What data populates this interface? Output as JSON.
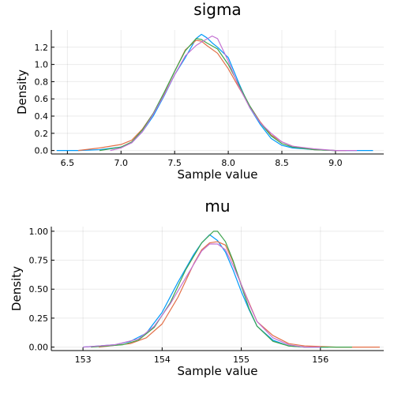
{
  "chart_data": [
    {
      "type": "line",
      "title": "sigma",
      "xlabel": "Sample value",
      "ylabel": "Density",
      "xlim": [
        6.35,
        9.45
      ],
      "ylim": [
        -0.04,
        1.4
      ],
      "xticks": [
        6.5,
        7.0,
        7.5,
        8.0,
        8.5,
        9.0
      ],
      "xtick_labels": [
        "6.5",
        "7.0",
        "7.5",
        "8.0",
        "8.5",
        "9.0"
      ],
      "yticks": [
        0.0,
        0.2,
        0.4,
        0.6,
        0.8,
        1.0,
        1.2
      ],
      "ytick_labels": [
        "0.0",
        "0.2",
        "0.4",
        "0.6",
        "0.8",
        "1.0",
        "1.2"
      ],
      "grid": true,
      "legend": "none",
      "series": [
        {
          "color": "#009AFA",
          "points": [
            [
              6.4,
              0.0
            ],
            [
              6.6,
              0.0
            ],
            [
              6.8,
              0.01
            ],
            [
              7.0,
              0.04
            ],
            [
              7.1,
              0.09
            ],
            [
              7.2,
              0.22
            ],
            [
              7.3,
              0.4
            ],
            [
              7.4,
              0.63
            ],
            [
              7.5,
              0.88
            ],
            [
              7.6,
              1.08
            ],
            [
              7.7,
              1.3
            ],
            [
              7.75,
              1.35
            ],
            [
              7.8,
              1.31
            ],
            [
              7.85,
              1.25
            ],
            [
              7.9,
              1.2
            ],
            [
              8.0,
              1.08
            ],
            [
              8.1,
              0.78
            ],
            [
              8.2,
              0.5
            ],
            [
              8.3,
              0.3
            ],
            [
              8.4,
              0.14
            ],
            [
              8.5,
              0.06
            ],
            [
              8.6,
              0.03
            ],
            [
              8.8,
              0.01
            ],
            [
              9.0,
              0.0
            ],
            [
              9.35,
              0.0
            ]
          ]
        },
        {
          "color": "#E36F47",
          "points": [
            [
              6.6,
              0.0
            ],
            [
              6.8,
              0.03
            ],
            [
              7.0,
              0.07
            ],
            [
              7.1,
              0.12
            ],
            [
              7.2,
              0.25
            ],
            [
              7.3,
              0.43
            ],
            [
              7.4,
              0.66
            ],
            [
              7.5,
              0.92
            ],
            [
              7.6,
              1.17
            ],
            [
              7.7,
              1.28
            ],
            [
              7.75,
              1.27
            ],
            [
              7.8,
              1.22
            ],
            [
              7.9,
              1.13
            ],
            [
              8.0,
              0.95
            ],
            [
              8.1,
              0.73
            ],
            [
              8.2,
              0.52
            ],
            [
              8.3,
              0.33
            ],
            [
              8.4,
              0.18
            ],
            [
              8.5,
              0.1
            ],
            [
              8.6,
              0.05
            ],
            [
              8.8,
              0.01
            ],
            [
              9.0,
              0.0
            ],
            [
              9.1,
              0.0
            ]
          ]
        },
        {
          "color": "#3EA44E",
          "points": [
            [
              6.8,
              0.0
            ],
            [
              7.0,
              0.04
            ],
            [
              7.1,
              0.1
            ],
            [
              7.2,
              0.24
            ],
            [
              7.3,
              0.43
            ],
            [
              7.4,
              0.67
            ],
            [
              7.5,
              0.92
            ],
            [
              7.6,
              1.16
            ],
            [
              7.7,
              1.3
            ],
            [
              7.75,
              1.29
            ],
            [
              7.8,
              1.25
            ],
            [
              7.9,
              1.18
            ],
            [
              8.0,
              1.0
            ],
            [
              8.1,
              0.76
            ],
            [
              8.2,
              0.52
            ],
            [
              8.3,
              0.32
            ],
            [
              8.4,
              0.17
            ],
            [
              8.5,
              0.08
            ],
            [
              8.6,
              0.04
            ],
            [
              8.8,
              0.01
            ],
            [
              9.0,
              0.0
            ]
          ]
        },
        {
          "color": "#C371D2",
          "points": [
            [
              6.9,
              0.0
            ],
            [
              7.0,
              0.03
            ],
            [
              7.1,
              0.09
            ],
            [
              7.2,
              0.22
            ],
            [
              7.3,
              0.42
            ],
            [
              7.4,
              0.64
            ],
            [
              7.5,
              0.88
            ],
            [
              7.6,
              1.1
            ],
            [
              7.7,
              1.22
            ],
            [
              7.75,
              1.26
            ],
            [
              7.85,
              1.33
            ],
            [
              7.9,
              1.3
            ],
            [
              8.0,
              1.04
            ],
            [
              8.1,
              0.74
            ],
            [
              8.2,
              0.5
            ],
            [
              8.3,
              0.32
            ],
            [
              8.4,
              0.2
            ],
            [
              8.5,
              0.1
            ],
            [
              8.6,
              0.05
            ],
            [
              8.8,
              0.02
            ],
            [
              9.0,
              0.0
            ],
            [
              9.2,
              0.0
            ]
          ]
        }
      ]
    },
    {
      "type": "line",
      "title": "mu",
      "xlabel": "Sample value",
      "ylabel": "Density",
      "xlim": [
        152.6,
        156.8
      ],
      "ylim": [
        -0.03,
        1.04
      ],
      "xticks": [
        153,
        154,
        155,
        156
      ],
      "xtick_labels": [
        "153",
        "154",
        "155",
        "156"
      ],
      "yticks": [
        0.0,
        0.25,
        0.5,
        0.75,
        1.0
      ],
      "ytick_labels": [
        "0.00",
        "0.25",
        "0.50",
        "0.75",
        "1.00"
      ],
      "grid": true,
      "legend": "none",
      "series": [
        {
          "color": "#009AFA",
          "points": [
            [
              153.0,
              0.0
            ],
            [
              153.4,
              0.02
            ],
            [
              153.6,
              0.05
            ],
            [
              153.8,
              0.12
            ],
            [
              154.0,
              0.3
            ],
            [
              154.2,
              0.56
            ],
            [
              154.4,
              0.8
            ],
            [
              154.5,
              0.9
            ],
            [
              154.6,
              0.97
            ],
            [
              154.7,
              0.92
            ],
            [
              154.8,
              0.82
            ],
            [
              154.9,
              0.66
            ],
            [
              155.0,
              0.48
            ],
            [
              155.1,
              0.32
            ],
            [
              155.2,
              0.18
            ],
            [
              155.4,
              0.06
            ],
            [
              155.6,
              0.01
            ],
            [
              155.8,
              0.0
            ],
            [
              156.1,
              0.0
            ]
          ]
        },
        {
          "color": "#E36F47",
          "points": [
            [
              153.2,
              0.0
            ],
            [
              153.6,
              0.03
            ],
            [
              153.8,
              0.08
            ],
            [
              154.0,
              0.2
            ],
            [
              154.2,
              0.43
            ],
            [
              154.4,
              0.72
            ],
            [
              154.5,
              0.84
            ],
            [
              154.6,
              0.9
            ],
            [
              154.7,
              0.91
            ],
            [
              154.8,
              0.88
            ],
            [
              154.9,
              0.73
            ],
            [
              155.0,
              0.54
            ],
            [
              155.1,
              0.38
            ],
            [
              155.2,
              0.22
            ],
            [
              155.4,
              0.1
            ],
            [
              155.6,
              0.03
            ],
            [
              155.8,
              0.01
            ],
            [
              156.2,
              0.0
            ],
            [
              156.75,
              0.0
            ]
          ]
        },
        {
          "color": "#3EA44E",
          "points": [
            [
              153.1,
              0.0
            ],
            [
              153.5,
              0.02
            ],
            [
              153.7,
              0.06
            ],
            [
              153.9,
              0.17
            ],
            [
              154.1,
              0.38
            ],
            [
              154.3,
              0.67
            ],
            [
              154.5,
              0.9
            ],
            [
              154.65,
              1.0
            ],
            [
              154.7,
              1.0
            ],
            [
              154.8,
              0.91
            ],
            [
              154.9,
              0.74
            ],
            [
              155.0,
              0.53
            ],
            [
              155.1,
              0.33
            ],
            [
              155.2,
              0.18
            ],
            [
              155.4,
              0.05
            ],
            [
              155.6,
              0.01
            ],
            [
              155.8,
              0.0
            ],
            [
              156.4,
              0.0
            ]
          ]
        },
        {
          "color": "#C371D2",
          "points": [
            [
              153.0,
              0.0
            ],
            [
              153.4,
              0.02
            ],
            [
              153.7,
              0.07
            ],
            [
              153.9,
              0.18
            ],
            [
              154.1,
              0.37
            ],
            [
              154.3,
              0.6
            ],
            [
              154.5,
              0.83
            ],
            [
              154.6,
              0.89
            ],
            [
              154.7,
              0.89
            ],
            [
              154.8,
              0.84
            ],
            [
              154.9,
              0.7
            ],
            [
              155.0,
              0.54
            ],
            [
              155.1,
              0.37
            ],
            [
              155.2,
              0.22
            ],
            [
              155.4,
              0.08
            ],
            [
              155.6,
              0.02
            ],
            [
              155.8,
              0.0
            ],
            [
              156.0,
              0.0
            ]
          ]
        }
      ]
    }
  ]
}
